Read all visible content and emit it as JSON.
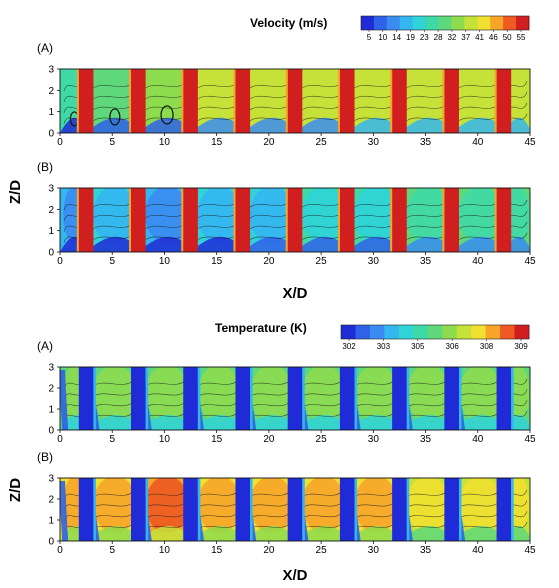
{
  "figure": {
    "velocity_block": {
      "colorbar_title": "Velocity (m/s)",
      "colorbar_ticks": [
        "5",
        "10",
        "14",
        "19",
        "23",
        "28",
        "32",
        "37",
        "41",
        "46",
        "50",
        "55"
      ],
      "colorbar_colors": [
        "#1f2bd6",
        "#2f62e8",
        "#3a8cf0",
        "#34b6ef",
        "#2fd3d8",
        "#3fd9a6",
        "#5ed87a",
        "#8ddc4e",
        "#c5e23a",
        "#f0e030",
        "#f6a52a",
        "#ee5a22",
        "#d11e1e"
      ],
      "xlabel": "X/D",
      "ylabel": "Z/D"
    },
    "temperature_block": {
      "colorbar_title": "Temperature (K)",
      "colorbar_ticks": [
        "302",
        "303",
        "305",
        "306",
        "308",
        "309"
      ],
      "colorbar_colors": [
        "#1f2bd6",
        "#2f62e8",
        "#3a8cf0",
        "#34b6ef",
        "#2fd3d8",
        "#3fd9a6",
        "#5ed87a",
        "#8ddc4e",
        "#c5e23a",
        "#f0e030",
        "#f6a52a",
        "#ee5a22",
        "#d11e1e"
      ],
      "xlabel": "X/D",
      "ylabel": "Z/D"
    }
  },
  "chart_data": [
    {
      "type": "heatmap",
      "panel_label": "(A)",
      "quantity": "velocity",
      "x_ticks": [
        0,
        5,
        10,
        15,
        20,
        25,
        30,
        35,
        40,
        45
      ],
      "y_ticks": [
        0,
        1,
        2,
        3
      ],
      "xlim": [
        0,
        45
      ],
      "ylim": [
        0,
        3
      ],
      "xlabel": "",
      "ylabel": "",
      "building_x": [
        2.5,
        7.5,
        12.5,
        17.5,
        22.5,
        27.5,
        32.5,
        37.5,
        42.5
      ],
      "cavity_levels": [
        0.2,
        0.3,
        0.4,
        0.5,
        0.55,
        0.55,
        0.6,
        0.6,
        0.6
      ]
    },
    {
      "type": "heatmap",
      "panel_label": "(B)",
      "quantity": "velocity",
      "x_ticks": [
        0,
        5,
        10,
        15,
        20,
        25,
        30,
        35,
        40,
        45
      ],
      "y_ticks": [
        0,
        1,
        2,
        3
      ],
      "xlim": [
        0,
        45
      ],
      "ylim": [
        0,
        3
      ],
      "xlabel": "X/D",
      "ylabel": "",
      "building_x": [
        2.5,
        7.5,
        12.5,
        17.5,
        22.5,
        27.5,
        32.5,
        37.5,
        42.5
      ],
      "cavity_levels": [
        0.15,
        0.2,
        0.15,
        0.2,
        0.3,
        0.35,
        0.4,
        0.5,
        0.55
      ]
    },
    {
      "type": "heatmap",
      "panel_label": "(A)",
      "quantity": "temperature",
      "x_ticks": [
        0,
        5,
        10,
        15,
        20,
        25,
        30,
        35,
        40,
        45
      ],
      "y_ticks": [
        0,
        1,
        2,
        3
      ],
      "xlim": [
        0,
        45
      ],
      "ylim": [
        0,
        3
      ],
      "xlabel": "",
      "ylabel": "",
      "building_x": [
        2.5,
        7.5,
        12.5,
        17.5,
        22.5,
        27.5,
        32.5,
        37.5,
        42.5
      ],
      "cavity_levels": [
        0.55,
        0.6,
        0.62,
        0.62,
        0.62,
        0.62,
        0.62,
        0.62,
        0.62
      ]
    },
    {
      "type": "heatmap",
      "panel_label": "(B)",
      "quantity": "temperature",
      "x_ticks": [
        0,
        5,
        10,
        15,
        20,
        25,
        30,
        35,
        40,
        45
      ],
      "y_ticks": [
        0,
        1,
        2,
        3
      ],
      "xlim": [
        0,
        45
      ],
      "ylim": [
        0,
        3
      ],
      "xlabel": "X/D",
      "ylabel": "",
      "building_x": [
        2.5,
        7.5,
        12.5,
        17.5,
        22.5,
        27.5,
        32.5,
        37.5,
        42.5
      ],
      "cavity_levels": [
        0.8,
        0.85,
        0.88,
        0.85,
        0.85,
        0.82,
        0.8,
        0.78,
        0.76
      ]
    }
  ]
}
